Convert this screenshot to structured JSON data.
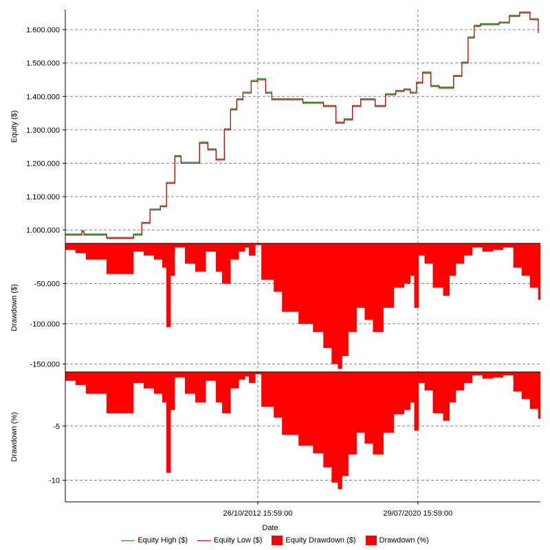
{
  "chart_data": {
    "type": "line",
    "xlabel": "Date",
    "x_range_years": [
      2003.5,
      2026.5
    ],
    "x_ticks": [
      {
        "year": 2012.82,
        "label": "26/10/2012 15:59:00"
      },
      {
        "year": 2020.57,
        "label": "29/07/2020 15:59:00"
      }
    ],
    "panels": [
      {
        "id": "equity",
        "ylabel": "Equity ($)",
        "ylim": [
          960000,
          1660000
        ],
        "yticks": [
          1000000,
          1100000,
          1200000,
          1300000,
          1400000,
          1500000,
          1600000
        ],
        "ytick_labels": [
          "1.000.000",
          "1.100.000",
          "1.200.000",
          "1.300.000",
          "1.400.000",
          "1.500.000",
          "1.600.000"
        ]
      },
      {
        "id": "drawdown_usd",
        "ylabel": "Drawdown ($)",
        "ylim": [
          -160000,
          0
        ],
        "yticks": [
          -50000,
          -100000,
          -150000
        ],
        "ytick_labels": [
          "-50.000",
          "-100.000",
          "-150.000"
        ]
      },
      {
        "id": "drawdown_pct",
        "ylabel": "Drawdown (%)",
        "ylim": [
          -12,
          0
        ],
        "yticks": [
          -5,
          -10
        ],
        "ytick_labels": [
          "-5",
          "-10"
        ]
      }
    ],
    "legend": {
      "position": "bottom",
      "items": [
        {
          "label": "Equity High ($)",
          "kind": "line",
          "color": "#228B22"
        },
        {
          "label": "Equity Low ($)",
          "kind": "line",
          "color": "#CC0000"
        },
        {
          "label": "Equity Drawdown ($)",
          "kind": "area",
          "color": "#FF0000"
        },
        {
          "label": "Drawdown (%)",
          "kind": "area",
          "color": "#FF0000"
        }
      ]
    },
    "series": [
      {
        "name": "Equity Low ($)",
        "year": [
          2003.5,
          2004.3,
          2004.4,
          2005.5,
          2006.5,
          2006.8,
          2007.2,
          2007.6,
          2008.1,
          2008.4,
          2008.8,
          2009.1,
          2009.4,
          2010.0,
          2010.4,
          2010.8,
          2011.2,
          2011.5,
          2011.8,
          2012.1,
          2012.5,
          2012.8,
          2013.2,
          2013.5,
          2014.0,
          2015.0,
          2016.0,
          2016.6,
          2017.0,
          2017.4,
          2017.8,
          2018.5,
          2019.0,
          2019.5,
          2019.9,
          2020.2,
          2020.5,
          2020.8,
          2021.2,
          2021.6,
          2022.0,
          2022.3,
          2022.7,
          2023.0,
          2023.3,
          2023.6,
          2024.0,
          2024.5,
          2025.0,
          2025.5,
          2026.0,
          2026.4
        ],
        "values": [
          985000,
          995000,
          985000,
          975000,
          975000,
          985000,
          1020000,
          1060000,
          1070000,
          1140000,
          1220000,
          1200000,
          1200000,
          1260000,
          1240000,
          1210000,
          1300000,
          1360000,
          1390000,
          1410000,
          1445000,
          1450000,
          1410000,
          1390000,
          1390000,
          1380000,
          1370000,
          1320000,
          1330000,
          1370000,
          1390000,
          1370000,
          1405000,
          1415000,
          1420000,
          1410000,
          1440000,
          1470000,
          1430000,
          1425000,
          1425000,
          1460000,
          1500000,
          1575000,
          1610000,
          1615000,
          1615000,
          1620000,
          1640000,
          1650000,
          1630000,
          1590000
        ]
      },
      {
        "name": "Equity Drawdown ($)",
        "year": [
          2003.5,
          2004.0,
          2004.5,
          2005.5,
          2006.5,
          2006.8,
          2007.3,
          2007.8,
          2008.2,
          2008.4,
          2008.6,
          2008.8,
          2009.3,
          2009.8,
          2010.3,
          2010.8,
          2011.1,
          2011.5,
          2011.9,
          2012.2,
          2012.4,
          2012.7,
          2013.0,
          2013.6,
          2014.0,
          2014.8,
          2015.5,
          2016.0,
          2016.4,
          2016.7,
          2016.9,
          2017.2,
          2017.6,
          2018.0,
          2018.4,
          2018.9,
          2019.4,
          2019.9,
          2020.2,
          2020.4,
          2020.6,
          2020.9,
          2021.3,
          2021.8,
          2022.1,
          2022.4,
          2022.8,
          2023.2,
          2023.7,
          2024.2,
          2024.7,
          2025.2,
          2025.6,
          2026.0,
          2026.4
        ],
        "values": [
          -8000,
          -12000,
          -20000,
          -38000,
          -38000,
          -10000,
          -15000,
          -20000,
          -30000,
          -104000,
          -40000,
          -5000,
          -25000,
          -35000,
          -10000,
          -35000,
          -50000,
          -20000,
          -10000,
          -5000,
          -15000,
          -2000,
          -45000,
          -60000,
          -85000,
          -100000,
          -110000,
          -130000,
          -150000,
          -156000,
          -140000,
          -110000,
          -80000,
          -95000,
          -110000,
          -80000,
          -55000,
          -50000,
          -40000,
          -80000,
          -15000,
          -25000,
          -55000,
          -65000,
          -40000,
          -25000,
          -15000,
          -5000,
          -10000,
          -8000,
          -5000,
          -30000,
          -40000,
          -55000,
          -70000
        ]
      },
      {
        "name": "Drawdown (%)",
        "year": [
          2003.5,
          2004.0,
          2004.5,
          2005.5,
          2006.5,
          2006.8,
          2007.3,
          2007.8,
          2008.2,
          2008.4,
          2008.6,
          2008.8,
          2009.3,
          2009.8,
          2010.3,
          2010.8,
          2011.1,
          2011.5,
          2011.9,
          2012.2,
          2012.4,
          2012.7,
          2013.0,
          2013.6,
          2014.0,
          2014.8,
          2015.5,
          2016.0,
          2016.4,
          2016.7,
          2016.9,
          2017.2,
          2017.6,
          2018.0,
          2018.4,
          2018.9,
          2019.4,
          2019.9,
          2020.2,
          2020.4,
          2020.6,
          2020.9,
          2021.3,
          2021.8,
          2022.1,
          2022.4,
          2022.8,
          2023.2,
          2023.7,
          2024.2,
          2024.7,
          2025.2,
          2025.6,
          2026.0,
          2026.4
        ],
        "values": [
          -0.8,
          -1.2,
          -2.0,
          -3.8,
          -3.8,
          -1.0,
          -1.5,
          -2.0,
          -2.8,
          -9.3,
          -3.5,
          -0.5,
          -2.0,
          -2.8,
          -0.8,
          -2.8,
          -3.8,
          -1.5,
          -0.7,
          -0.4,
          -1.0,
          -0.2,
          -3.2,
          -4.2,
          -5.8,
          -6.8,
          -7.5,
          -8.8,
          -10.2,
          -10.8,
          -9.6,
          -7.6,
          -5.6,
          -6.6,
          -7.6,
          -5.6,
          -3.9,
          -3.5,
          -2.8,
          -5.4,
          -1.0,
          -1.7,
          -3.8,
          -4.5,
          -2.8,
          -1.7,
          -1.0,
          -0.3,
          -0.6,
          -0.5,
          -0.3,
          -1.8,
          -2.5,
          -3.4,
          -4.3
        ]
      }
    ]
  }
}
